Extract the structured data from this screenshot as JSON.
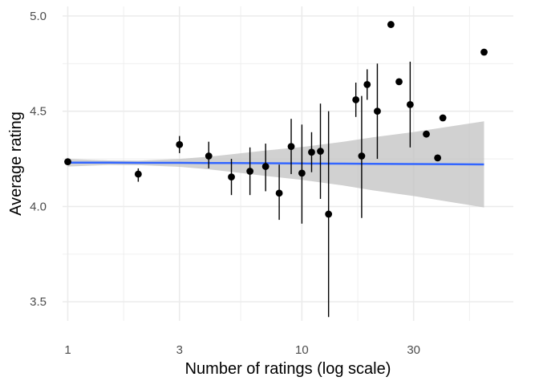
{
  "chart_data": {
    "type": "scatter",
    "title": "",
    "xlabel": "Number of ratings (log scale)",
    "ylabel": "Average rating",
    "x_scale": "log10",
    "xlim": [
      0.95,
      80
    ],
    "ylim": [
      3.4,
      5.05
    ],
    "x_ticks": [
      1,
      3,
      10,
      30
    ],
    "x_tick_labels": [
      "1",
      "3",
      "10",
      "30"
    ],
    "y_ticks": [
      3.5,
      4.0,
      4.5,
      5.0
    ],
    "y_tick_labels": [
      "3.5",
      "4.0",
      "4.5",
      "5.0"
    ],
    "grid": true,
    "colors": {
      "points": "#000000",
      "error_bars": "#000000",
      "trend_line": "#3366ff",
      "confidence_band": "#bfbfbf",
      "grid": "#ebebeb"
    },
    "points": [
      {
        "x": 1,
        "y": 4.235,
        "lo": null,
        "hi": null
      },
      {
        "x": 2,
        "y": 4.17,
        "lo": 4.13,
        "hi": 4.2
      },
      {
        "x": 3,
        "y": 4.325,
        "lo": 4.28,
        "hi": 4.37
      },
      {
        "x": 4,
        "y": 4.265,
        "lo": 4.2,
        "hi": 4.34
      },
      {
        "x": 5,
        "y": 4.155,
        "lo": 4.06,
        "hi": 4.25
      },
      {
        "x": 6,
        "y": 4.185,
        "lo": 4.06,
        "hi": 4.31
      },
      {
        "x": 7,
        "y": 4.21,
        "lo": 4.08,
        "hi": 4.33
      },
      {
        "x": 8,
        "y": 4.07,
        "lo": 3.93,
        "hi": 4.22
      },
      {
        "x": 9,
        "y": 4.315,
        "lo": 4.17,
        "hi": 4.46
      },
      {
        "x": 10,
        "y": 4.175,
        "lo": 3.91,
        "hi": 4.43
      },
      {
        "x": 11,
        "y": 4.285,
        "lo": 4.18,
        "hi": 4.39
      },
      {
        "x": 12,
        "y": 4.29,
        "lo": 4.04,
        "hi": 4.54
      },
      {
        "x": 13,
        "y": 3.96,
        "lo": 3.42,
        "hi": 4.5
      },
      {
        "x": 17,
        "y": 4.56,
        "lo": 4.47,
        "hi": 4.65
      },
      {
        "x": 18,
        "y": 4.265,
        "lo": 3.94,
        "hi": 4.58
      },
      {
        "x": 19,
        "y": 4.64,
        "lo": 4.56,
        "hi": 4.72
      },
      {
        "x": 21,
        "y": 4.5,
        "lo": 4.25,
        "hi": 4.75
      },
      {
        "x": 24,
        "y": 4.955,
        "lo": null,
        "hi": null
      },
      {
        "x": 26,
        "y": 4.655,
        "lo": null,
        "hi": null
      },
      {
        "x": 29,
        "y": 4.535,
        "lo": 4.31,
        "hi": 4.76
      },
      {
        "x": 34,
        "y": 4.38,
        "lo": null,
        "hi": null
      },
      {
        "x": 38,
        "y": 4.255,
        "lo": null,
        "hi": null
      },
      {
        "x": 40,
        "y": 4.465,
        "lo": null,
        "hi": null
      },
      {
        "x": 60,
        "y": 4.81,
        "lo": null,
        "hi": null
      }
    ],
    "trend": {
      "x": [
        1,
        1.5,
        2,
        3,
        4,
        5,
        7,
        10,
        15,
        20,
        30,
        45,
        60
      ],
      "y": [
        4.23,
        4.23,
        4.229,
        4.229,
        4.228,
        4.228,
        4.227,
        4.226,
        4.225,
        4.224,
        4.223,
        4.222,
        4.221
      ],
      "lo": [
        4.21,
        4.218,
        4.217,
        4.208,
        4.195,
        4.182,
        4.16,
        4.14,
        4.11,
        4.085,
        4.055,
        4.02,
        3.995
      ],
      "hi": [
        4.25,
        4.242,
        4.241,
        4.25,
        4.261,
        4.274,
        4.294,
        4.312,
        4.34,
        4.363,
        4.391,
        4.424,
        4.447
      ]
    }
  }
}
